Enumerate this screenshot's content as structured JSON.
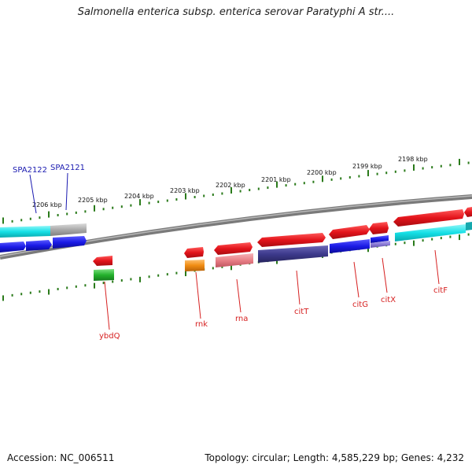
{
  "title": "Salmonella enterica subsp. enterica serovar Paratyphi A str....",
  "footer": {
    "accession": "Accession: NC_006511",
    "summary": "Topology: circular; Length: 4,585,229 bp; Genes: 4,232"
  },
  "colors": {
    "forward_red": "#e3141b",
    "blue": "#1a1ae6",
    "cyan": "#15e0e6",
    "purple": "#3d3a8c",
    "pink": "#e87f86",
    "green": "#24b22d",
    "orange": "#f08c12",
    "grey": "#a9a9a9",
    "light_purple": "#8a7ad6",
    "label_red": "#d62020",
    "label_blue": "#1a1ab0",
    "tick_green": "#2a7a1a"
  },
  "scale_labels": [
    "2206 kbp",
    "2205 kbp",
    "2204 kbp",
    "2203 kbp",
    "2202 kbp",
    "2201 kbp",
    "2200 kbp",
    "2199 kbp",
    "2198 kbp"
  ],
  "gene_labels": {
    "top": [
      "SPA2122",
      "SPA2121"
    ],
    "bottom": [
      "ybdQ",
      "rnk",
      "rna",
      "citT",
      "citG",
      "citX",
      "citF"
    ]
  }
}
